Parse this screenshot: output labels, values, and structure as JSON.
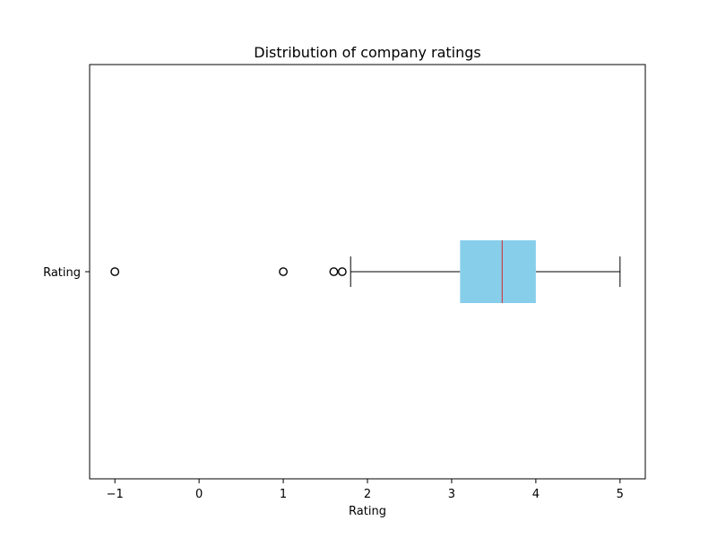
{
  "chart_data": {
    "type": "boxplot",
    "orientation": "horizontal",
    "title": "Distribution of company ratings",
    "xlabel": "Rating",
    "ylabel": "",
    "xlim": [
      -1.3,
      5.3
    ],
    "xticks": [
      -1,
      0,
      1,
      2,
      3,
      4,
      5
    ],
    "xtick_labels": [
      "−1",
      "0",
      "1",
      "2",
      "3",
      "4",
      "5"
    ],
    "categories": [
      "Rating"
    ],
    "grid": false,
    "boxes": [
      {
        "label": "Rating",
        "whisker_low": 1.8,
        "q1": 3.1,
        "median": 3.6,
        "q3": 4.0,
        "whisker_high": 5.0,
        "outliers": [
          -1.0,
          1.0,
          1.6,
          1.7
        ]
      }
    ],
    "colors": {
      "box_fill": "#87ceeb",
      "median": "#d62728",
      "lines": "#000000"
    }
  }
}
